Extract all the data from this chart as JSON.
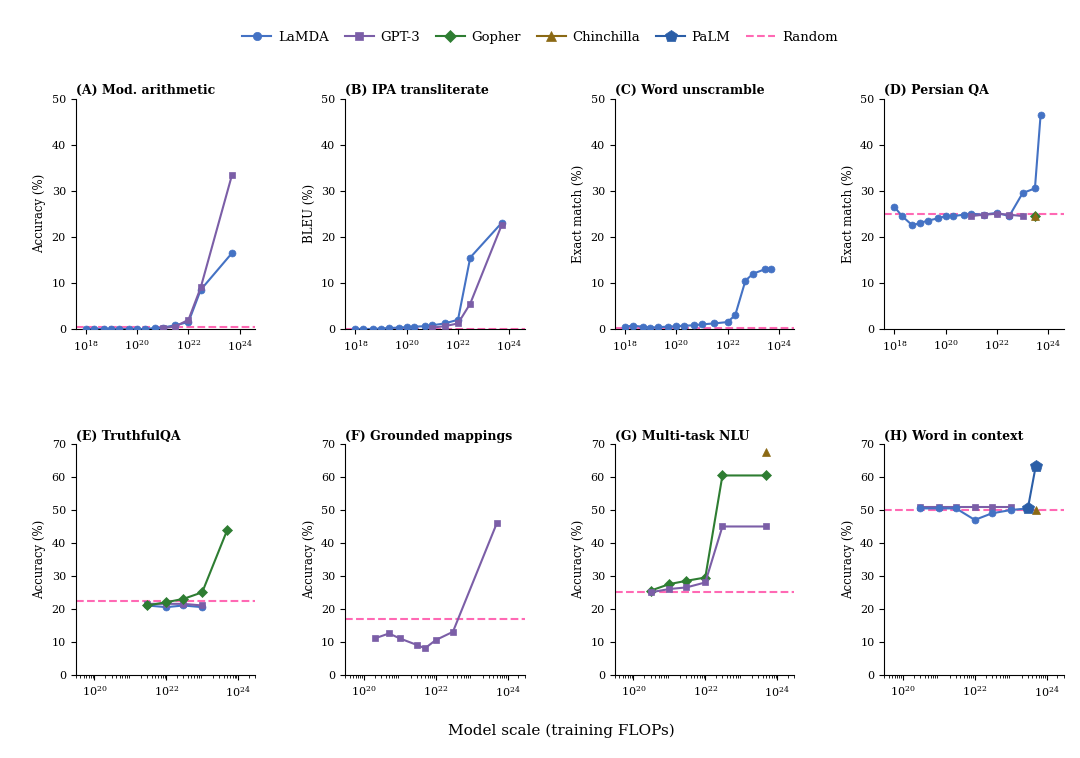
{
  "colors": {
    "LaMDA": "#4472C4",
    "GPT-3": "#7B5EA7",
    "Gopher": "#2E7D32",
    "Chinchilla": "#8B6914",
    "PaLM": "#2B5EA7",
    "Random": "#FF69B4"
  },
  "subplots": [
    {
      "label": "(A) Mod. arithmetic",
      "ylabel": "Accuracy (%)",
      "ylim": [
        0,
        50
      ],
      "random_line": 0.5,
      "row": 0,
      "series": [
        {
          "name": "LaMDA",
          "x": [
            1e+18,
            2e+18,
            5e+18,
            1e+19,
            2e+19,
            5e+19,
            1e+20,
            2e+20,
            5e+20,
            1e+21,
            3e+21,
            1e+22,
            3e+22,
            5e+23
          ],
          "y": [
            0,
            0,
            0,
            0,
            0,
            0,
            0,
            0,
            0.2,
            0.3,
            0.8,
            1.5,
            8.5,
            16.5
          ]
        },
        {
          "name": "GPT-3",
          "x": [
            1e+21,
            3e+21,
            1e+22,
            3e+22,
            5e+23
          ],
          "y": [
            0.2,
            0.5,
            2.0,
            9.0,
            33.5
          ]
        }
      ]
    },
    {
      "label": "(B) IPA transliterate",
      "ylabel": "BLEU (%)",
      "ylim": [
        0,
        50
      ],
      "random_line": 0.0,
      "row": 0,
      "series": [
        {
          "name": "LaMDA",
          "x": [
            1e+18,
            2e+18,
            5e+18,
            1e+19,
            2e+19,
            5e+19,
            1e+20,
            2e+20,
            5e+20,
            1e+21,
            3e+21,
            1e+22,
            3e+22,
            5e+23
          ],
          "y": [
            0,
            0,
            0,
            0.1,
            0.2,
            0.3,
            0.4,
            0.5,
            0.6,
            0.8,
            1.2,
            2.0,
            15.5,
            23.0
          ]
        },
        {
          "name": "GPT-3",
          "x": [
            1e+21,
            3e+21,
            1e+22,
            3e+22,
            5e+23
          ],
          "y": [
            0.3,
            0.6,
            1.2,
            5.5,
            22.5
          ]
        }
      ]
    },
    {
      "label": "(C) Word unscramble",
      "ylabel": "Exact match (%)",
      "ylim": [
        0,
        50
      ],
      "random_line": 0.3,
      "row": 0,
      "series": [
        {
          "name": "LaMDA",
          "x": [
            1e+18,
            2e+18,
            5e+18,
            1e+19,
            2e+19,
            5e+19,
            1e+20,
            2e+20,
            5e+20,
            1e+21,
            3e+21,
            1e+22,
            2e+22,
            5e+22,
            1e+23,
            3e+23,
            5e+23
          ],
          "y": [
            0.5,
            0.7,
            0.5,
            0.3,
            0.4,
            0.5,
            0.6,
            0.7,
            0.8,
            1.0,
            1.2,
            1.5,
            3.0,
            10.5,
            12.0,
            13.0,
            13.0
          ]
        }
      ]
    },
    {
      "label": "(D) Persian QA",
      "ylabel": "Exact match (%)",
      "ylim": [
        0,
        50
      ],
      "random_line": 25.0,
      "row": 0,
      "series": [
        {
          "name": "LaMDA",
          "x": [
            1e+18,
            2e+18,
            5e+18,
            1e+19,
            2e+19,
            5e+19,
            1e+20,
            2e+20,
            5e+20,
            1e+21,
            3e+21,
            1e+22,
            3e+22,
            1e+23,
            3e+23,
            5e+23
          ],
          "y": [
            26.5,
            24.5,
            22.5,
            23.0,
            23.5,
            24.0,
            24.5,
            24.5,
            24.8,
            25.0,
            24.8,
            25.2,
            24.5,
            29.5,
            30.5,
            46.5
          ]
        },
        {
          "name": "GPT-3",
          "x": [
            1e+21,
            3e+21,
            1e+22,
            3e+22,
            1e+23
          ],
          "y": [
            24.5,
            24.8,
            25.0,
            24.8,
            24.5
          ]
        },
        {
          "name": "Gopher",
          "x": [
            3e+23
          ],
          "y": [
            24.5
          ]
        },
        {
          "name": "Chinchilla",
          "x": [
            3e+23
          ],
          "y": [
            24.5
          ]
        }
      ]
    },
    {
      "label": "(E) TruthfulQA",
      "ylabel": "Accuracy (%)",
      "ylim": [
        0,
        70
      ],
      "random_line": 22.5,
      "row": 1,
      "series": [
        {
          "name": "LaMDA",
          "x": [
            3e+21,
            1e+22,
            3e+22,
            1e+23
          ],
          "y": [
            21.0,
            20.5,
            21.0,
            20.5
          ]
        },
        {
          "name": "GPT-3",
          "x": [
            3e+21,
            1e+22,
            3e+22,
            1e+23
          ],
          "y": [
            21.5,
            21.5,
            21.5,
            21.0
          ]
        },
        {
          "name": "Gopher",
          "x": [
            3e+21,
            1e+22,
            3e+22,
            1e+23,
            5e+23
          ],
          "y": [
            21.0,
            22.0,
            23.0,
            25.0,
            44.0
          ]
        }
      ]
    },
    {
      "label": "(F) Grounded mappings",
      "ylabel": "Accuracy (%)",
      "ylim": [
        0,
        70
      ],
      "random_line": 17.0,
      "row": 1,
      "series": [
        {
          "name": "GPT-3",
          "x": [
            2e+20,
            5e+20,
            1e+21,
            3e+21,
            5e+21,
            1e+22,
            3e+22,
            5e+23
          ],
          "y": [
            11.0,
            12.5,
            11.0,
            9.0,
            8.0,
            10.5,
            13.0,
            46.0
          ]
        }
      ]
    },
    {
      "label": "(G) Multi-task NLU",
      "ylabel": "Accuracy (%)",
      "ylim": [
        0,
        70
      ],
      "random_line": 25.0,
      "row": 1,
      "series": [
        {
          "name": "Gopher",
          "x": [
            3e+20,
            1e+21,
            3e+21,
            1e+22,
            3e+22,
            5e+23
          ],
          "y": [
            25.5,
            27.5,
            28.5,
            29.5,
            60.5,
            60.5
          ]
        },
        {
          "name": "GPT-3",
          "x": [
            3e+20,
            1e+21,
            3e+21,
            1e+22,
            3e+22,
            5e+23
          ],
          "y": [
            25.0,
            26.0,
            26.5,
            28.0,
            45.0,
            45.0
          ]
        },
        {
          "name": "Chinchilla",
          "x": [
            5e+23
          ],
          "y": [
            67.5
          ]
        }
      ]
    },
    {
      "label": "(H) Word in context",
      "ylabel": "Accuracy (%)",
      "ylim": [
        0,
        70
      ],
      "random_line": 50.0,
      "row": 1,
      "series": [
        {
          "name": "GPT-3",
          "x": [
            3e+20,
            1e+21,
            3e+21,
            1e+22,
            3e+22,
            1e+23
          ],
          "y": [
            51.0,
            51.0,
            51.0,
            51.0,
            51.0,
            51.0
          ]
        },
        {
          "name": "Chinchilla",
          "x": [
            5e+23
          ],
          "y": [
            50.0
          ]
        },
        {
          "name": "LaMDA",
          "x": [
            3e+20,
            1e+21,
            3e+21,
            1e+22,
            3e+22,
            1e+23,
            3e+23
          ],
          "y": [
            50.5,
            50.5,
            50.5,
            47.0,
            49.0,
            50.0,
            50.5
          ]
        },
        {
          "name": "PaLM",
          "x": [
            3e+23,
            5e+23
          ],
          "y": [
            50.5,
            63.5
          ]
        }
      ]
    }
  ]
}
